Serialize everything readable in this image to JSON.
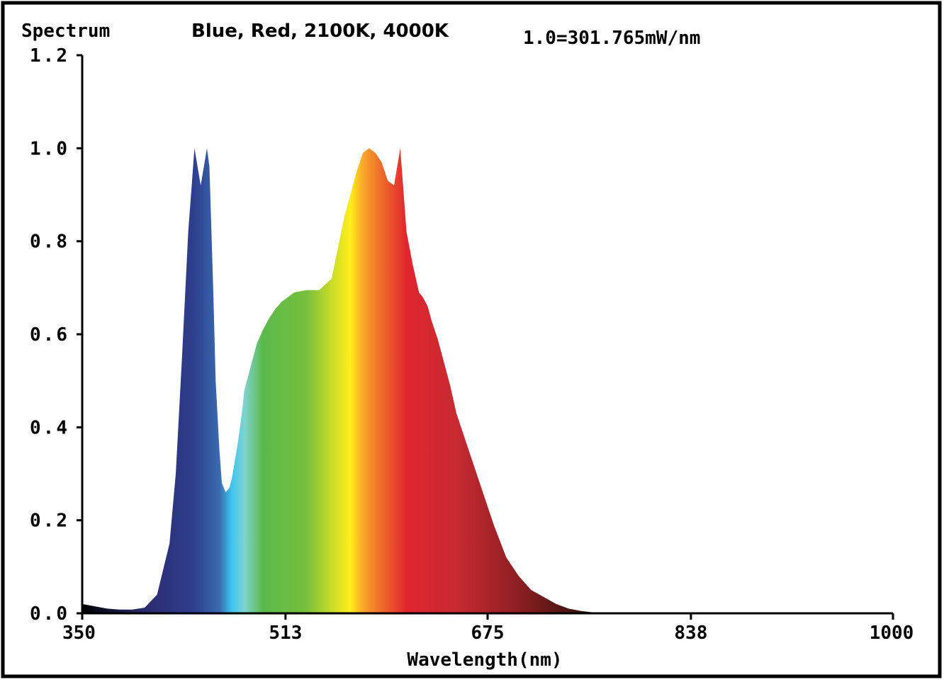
{
  "chart_data": {
    "type": "area",
    "title": "Spectrum",
    "subtitle": "Blue, Red, 2100K, 4000K",
    "scale_note": "1.0=301.765mW/nm",
    "xlabel": "Wavelength(nm)",
    "ylabel": "",
    "xlim": [
      350,
      1000
    ],
    "ylim": [
      0,
      1.2
    ],
    "x_ticks": [
      "350",
      "513",
      "675",
      "838",
      "1000"
    ],
    "y_ticks": [
      "0.0",
      "0.2",
      "0.4",
      "0.6",
      "0.8",
      "1.0",
      "1.2"
    ],
    "grid": false,
    "fill": "visible-spectrum rainbow gradient (violet to red, fading to black in near-IR)",
    "series": [
      {
        "x": [
          350,
          360,
          370,
          380,
          390,
          400,
          410,
          420,
          425,
          430,
          435,
          440,
          445,
          450,
          452,
          455,
          457,
          460,
          462,
          465,
          468,
          470,
          475,
          478,
          480,
          485,
          490,
          495,
          500,
          505,
          510,
          515,
          520,
          530,
          540,
          550,
          560,
          570,
          575,
          580,
          585,
          590,
          595,
          600,
          605,
          610,
          615,
          620,
          623,
          625,
          627,
          630,
          635,
          640,
          645,
          650,
          660,
          670,
          680,
          690,
          700,
          710,
          720,
          730,
          740,
          750,
          760,
          780,
          800,
          820,
          840,
          860,
          880,
          900,
          950,
          1000
        ],
        "y": [
          0.02,
          0.015,
          0.01,
          0.008,
          0.008,
          0.012,
          0.04,
          0.15,
          0.3,
          0.55,
          0.82,
          1.0,
          0.92,
          1.0,
          0.96,
          0.7,
          0.5,
          0.35,
          0.28,
          0.26,
          0.27,
          0.29,
          0.37,
          0.43,
          0.48,
          0.53,
          0.58,
          0.61,
          0.635,
          0.655,
          0.67,
          0.68,
          0.69,
          0.695,
          0.695,
          0.72,
          0.85,
          0.95,
          0.99,
          1.0,
          0.99,
          0.97,
          0.93,
          0.92,
          1.0,
          0.82,
          0.75,
          0.69,
          0.68,
          0.67,
          0.66,
          0.63,
          0.59,
          0.54,
          0.49,
          0.43,
          0.35,
          0.27,
          0.19,
          0.12,
          0.08,
          0.05,
          0.035,
          0.02,
          0.01,
          0.005,
          0.002,
          0.0,
          0.0,
          0.0,
          0.0,
          0.0,
          0.0,
          0.0,
          0.0,
          0.0
        ]
      }
    ],
    "colors": {
      "axis": "#000000",
      "background": "#ffffff",
      "spectrum_stops": [
        {
          "nm": 400,
          "color": "#2b2a6e"
        },
        {
          "nm": 440,
          "color": "#2e3f8f"
        },
        {
          "nm": 460,
          "color": "#3a6ab0"
        },
        {
          "nm": 470,
          "color": "#3ec6f0"
        },
        {
          "nm": 480,
          "color": "#7fd3d0"
        },
        {
          "nm": 495,
          "color": "#5cb84a"
        },
        {
          "nm": 530,
          "color": "#78bf3d"
        },
        {
          "nm": 550,
          "color": "#c9dc2a"
        },
        {
          "nm": 565,
          "color": "#ffee1a"
        },
        {
          "nm": 575,
          "color": "#f7a82a"
        },
        {
          "nm": 590,
          "color": "#ee6a2c"
        },
        {
          "nm": 610,
          "color": "#e0262e"
        },
        {
          "nm": 650,
          "color": "#c72a32"
        },
        {
          "nm": 700,
          "color": "#8c1f22"
        },
        {
          "nm": 740,
          "color": "#4a1512"
        },
        {
          "nm": 780,
          "color": "#1a0a08"
        },
        {
          "nm": 820,
          "color": "#000000"
        }
      ]
    }
  }
}
